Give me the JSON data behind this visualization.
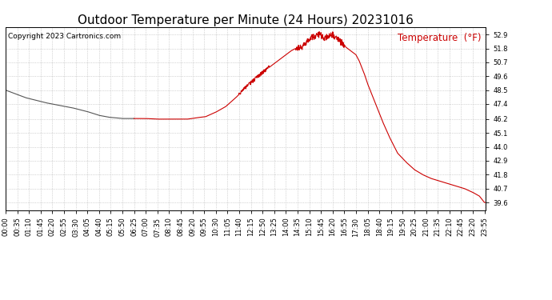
{
  "title": "Outdoor Temperature per Minute (24 Hours) 20231016",
  "copyright_text": "Copyright 2023 Cartronics.com",
  "legend_label": "Temperature  (°F)",
  "line_color_gray": "#555555",
  "line_color_red": "#cc0000",
  "background_color": "#ffffff",
  "grid_color": "#aaaaaa",
  "ylim_min": 39.0,
  "ylim_max": 53.5,
  "yticks": [
    39.6,
    40.7,
    41.8,
    42.9,
    44.0,
    45.1,
    46.2,
    47.4,
    48.5,
    49.6,
    50.7,
    51.8,
    52.9
  ],
  "xtick_labels": [
    "00:00",
    "00:35",
    "01:10",
    "01:45",
    "02:20",
    "02:55",
    "03:30",
    "04:05",
    "04:40",
    "05:15",
    "05:50",
    "06:25",
    "07:00",
    "07:35",
    "08:10",
    "08:45",
    "09:20",
    "09:55",
    "10:30",
    "11:05",
    "11:40",
    "12:15",
    "12:50",
    "13:25",
    "14:00",
    "14:35",
    "15:10",
    "15:45",
    "16:20",
    "16:55",
    "17:30",
    "18:05",
    "18:40",
    "19:15",
    "19:50",
    "20:25",
    "21:00",
    "21:35",
    "22:10",
    "22:45",
    "23:20",
    "23:55"
  ],
  "xtick_minutes": [
    0,
    35,
    70,
    105,
    140,
    175,
    210,
    245,
    280,
    315,
    350,
    385,
    420,
    455,
    490,
    525,
    560,
    595,
    630,
    665,
    700,
    735,
    770,
    805,
    840,
    875,
    910,
    945,
    980,
    1015,
    1050,
    1085,
    1120,
    1155,
    1190,
    1225,
    1260,
    1295,
    1330,
    1365,
    1400,
    1435
  ],
  "gray_cutoff_min": 385,
  "title_fontsize": 11,
  "copyright_fontsize": 6.5,
  "legend_fontsize": 8.5,
  "tick_fontsize": 6,
  "linewidth": 0.8,
  "figwidth": 6.9,
  "figheight": 3.75,
  "dpi": 100
}
